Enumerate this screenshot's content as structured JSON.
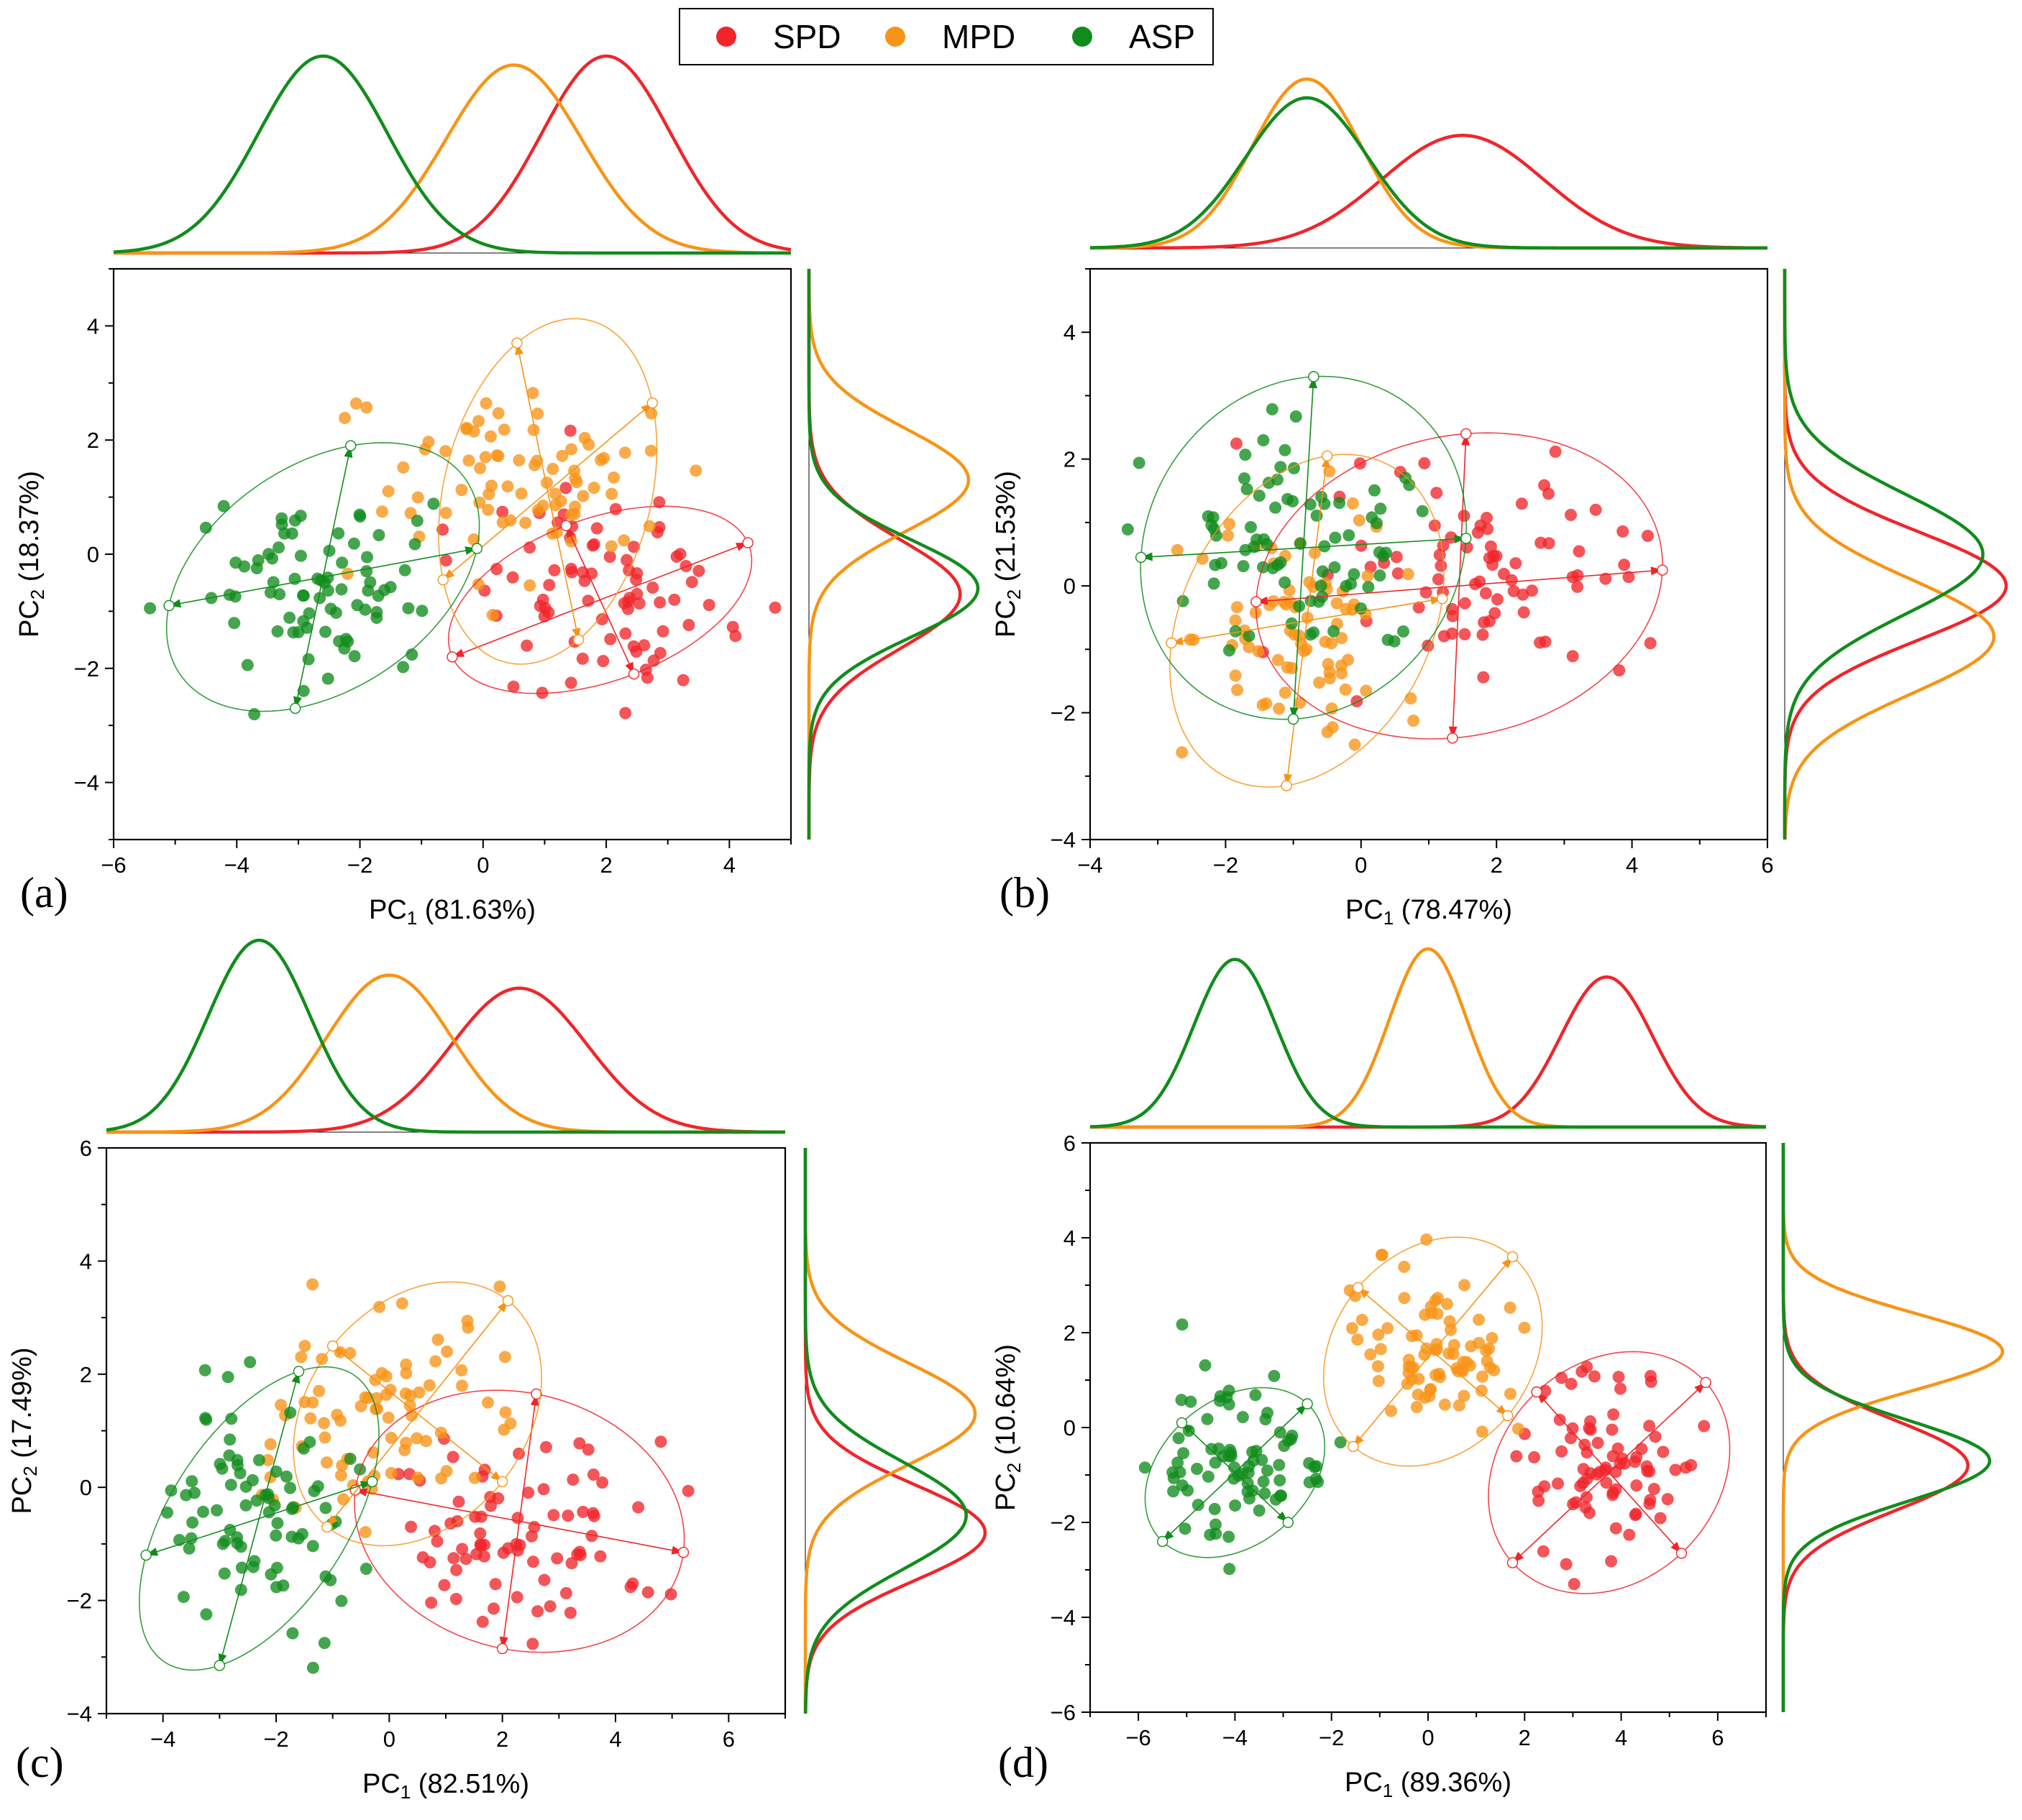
{
  "legend": {
    "items": [
      {
        "label": "SPD",
        "color": "#f0252a"
      },
      {
        "label": "MPD",
        "color": "#f79417"
      },
      {
        "label": "ASP",
        "color": "#118c1c"
      }
    ]
  },
  "chart_data": [
    {
      "id": "a",
      "type": "scatter",
      "panel_label": "(a)",
      "xlabel": {
        "main": "PC",
        "sub": "1",
        "suffix": " (81.63%)"
      },
      "ylabel": {
        "main": "PC",
        "sub": "2",
        "suffix": " (18.37%)"
      },
      "xlim": [
        -6,
        5
      ],
      "ylim": [
        -5,
        5
      ],
      "xticks": [
        -6,
        -4,
        -2,
        0,
        2,
        4
      ],
      "yticks": [
        -4,
        -2,
        0,
        2,
        4
      ],
      "grid": false,
      "legend_position": "top-center",
      "series": [
        {
          "name": "SPD",
          "color": "#f0252a",
          "x_mean": 2.0,
          "x_sd": 1.05,
          "y_mean": -0.7,
          "y_sd": 0.95,
          "ellipse": {
            "cx": 1.9,
            "cy": -0.8,
            "ax": [
              2.4,
              1.0
            ],
            "ay": [
              0.55,
              -1.3
            ]
          }
        },
        {
          "name": "MPD",
          "color": "#f79417",
          "x_mean": 0.5,
          "x_sd": 1.1,
          "y_mean": 1.3,
          "y_sd": 0.9,
          "ellipse": {
            "cx": 1.05,
            "cy": 1.1,
            "ax": [
              1.7,
              1.55
            ],
            "ay": [
              -0.5,
              2.6
            ]
          }
        },
        {
          "name": "ASP",
          "color": "#118c1c",
          "x_mean": -2.6,
          "x_sd": 1.05,
          "y_mean": -0.6,
          "y_sd": 0.85,
          "ellipse": {
            "cx": -2.6,
            "cy": -0.4,
            "ax": [
              2.5,
              0.5
            ],
            "ay": [
              0.45,
              2.3
            ]
          }
        }
      ]
    },
    {
      "id": "b",
      "type": "scatter",
      "panel_label": "(b)",
      "xlabel": {
        "main": "PC",
        "sub": "1",
        "suffix": " (78.47%)"
      },
      "ylabel": {
        "main": "PC",
        "sub": "2",
        "suffix": " (21.53%)"
      },
      "xlim": [
        -4,
        6
      ],
      "ylim": [
        -4,
        5
      ],
      "xticks": [
        -4,
        -2,
        0,
        2,
        4,
        6
      ],
      "yticks": [
        -4,
        -2,
        0,
        2,
        4
      ],
      "grid": false,
      "legend_position": "top-center",
      "series": [
        {
          "name": "SPD",
          "color": "#f0252a",
          "x_mean": 1.5,
          "x_sd": 1.2,
          "y_mean": 0.0,
          "y_sd": 0.85,
          "ellipse": {
            "cx": 1.45,
            "cy": 0.0,
            "ax": [
              3.0,
              0.25
            ],
            "ay": [
              0.1,
              2.4
            ]
          }
        },
        {
          "name": "MPD",
          "color": "#f79417",
          "x_mean": -0.8,
          "x_sd": 0.8,
          "y_mean": -0.8,
          "y_sd": 0.9,
          "ellipse": {
            "cx": -0.8,
            "cy": -0.55,
            "ax": [
              2.0,
              0.35
            ],
            "ay": [
              0.3,
              2.6
            ]
          }
        },
        {
          "name": "ASP",
          "color": "#118c1c",
          "x_mean": -0.8,
          "x_sd": 0.9,
          "y_mean": 0.5,
          "y_sd": 0.95,
          "ellipse": {
            "cx": -0.85,
            "cy": 0.6,
            "ax": [
              2.4,
              0.15
            ],
            "ay": [
              0.15,
              2.7
            ]
          }
        }
      ]
    },
    {
      "id": "c",
      "type": "scatter",
      "panel_label": "(c)",
      "xlabel": {
        "main": "PC",
        "sub": "1",
        "suffix": " (82.51%)"
      },
      "ylabel": {
        "main": "PC",
        "sub": "2",
        "suffix": " (17.49%)"
      },
      "xlim": [
        -5,
        7
      ],
      "ylim": [
        -4,
        6
      ],
      "xticks": [
        -4,
        -2,
        0,
        2,
        4,
        6
      ],
      "yticks": [
        -4,
        -2,
        0,
        2,
        4,
        6
      ],
      "grid": false,
      "legend_position": "top-center",
      "series": [
        {
          "name": "SPD",
          "color": "#f0252a",
          "x_mean": 2.3,
          "x_sd": 1.2,
          "y_mean": -0.8,
          "y_sd": 0.85,
          "ellipse": {
            "cx": 2.3,
            "cy": -0.6,
            "ax": [
              2.9,
              -0.55
            ],
            "ay": [
              0.3,
              2.25
            ]
          }
        },
        {
          "name": "MPD",
          "color": "#f79417",
          "x_mean": 0.0,
          "x_sd": 1.1,
          "y_mean": 1.3,
          "y_sd": 0.9,
          "ellipse": {
            "cx": 0.5,
            "cy": 1.3,
            "ax": [
              1.6,
              2.0
            ],
            "ay": [
              -1.5,
              1.2
            ]
          }
        },
        {
          "name": "ASP",
          "color": "#118c1c",
          "x_mean": -2.3,
          "x_sd": 0.9,
          "y_mean": -0.5,
          "y_sd": 0.95,
          "ellipse": {
            "cx": -2.3,
            "cy": -0.55,
            "ax": [
              2.0,
              0.65
            ],
            "ay": [
              0.7,
              2.6
            ]
          }
        }
      ]
    },
    {
      "id": "d",
      "type": "scatter",
      "panel_label": "(d)",
      "xlabel": {
        "main": "PC",
        "sub": "1",
        "suffix": " (89.36%)"
      },
      "ylabel": {
        "main": "PC",
        "sub": "2",
        "suffix": " (10.64%)"
      },
      "xlim": [
        -7,
        7
      ],
      "ylim": [
        -6,
        6
      ],
      "xticks": [
        -6,
        -4,
        -2,
        0,
        2,
        4,
        6
      ],
      "yticks": [
        -6,
        -4,
        -2,
        0,
        2,
        4,
        6
      ],
      "grid": false,
      "legend_position": "top-center",
      "series": [
        {
          "name": "SPD",
          "color": "#f0252a",
          "x_mean": 3.7,
          "x_sd": 0.95,
          "y_mean": -0.8,
          "y_sd": 0.95,
          "ellipse": {
            "cx": 3.75,
            "cy": -0.95,
            "ax": [
              2.0,
              1.9
            ],
            "ay": [
              -1.5,
              1.7
            ]
          }
        },
        {
          "name": "MPD",
          "color": "#f79417",
          "x_mean": 0.0,
          "x_sd": 0.8,
          "y_mean": 1.6,
          "y_sd": 0.8,
          "ellipse": {
            "cx": 0.1,
            "cy": 1.6,
            "ax": [
              1.65,
              2.0
            ],
            "ay": [
              -1.55,
              1.35
            ]
          }
        },
        {
          "name": "ASP",
          "color": "#118c1c",
          "x_mean": -4.0,
          "x_sd": 0.85,
          "y_mean": -0.7,
          "y_sd": 0.85,
          "ellipse": {
            "cx": -4.0,
            "cy": -0.95,
            "ax": [
              1.5,
              1.45
            ],
            "ay": [
              -1.1,
              1.05
            ]
          }
        }
      ]
    }
  ]
}
